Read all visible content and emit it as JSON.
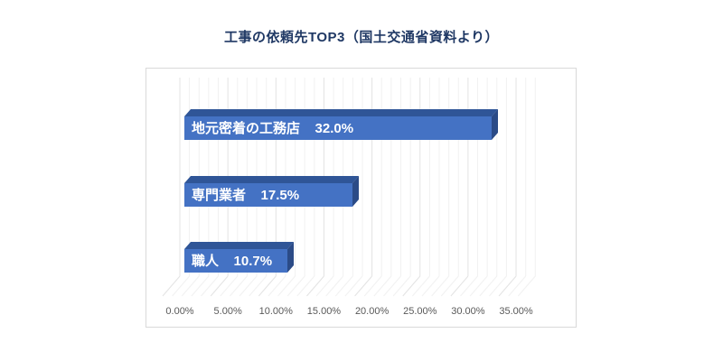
{
  "title": "工事の依頼先TOP3（国土交通省資料より）",
  "chart_data": {
    "type": "bar",
    "orientation": "horizontal",
    "style": "3d",
    "title": "工事の依頼先TOP3（国土交通省資料より）",
    "categories": [
      "地元密着の工務店",
      "専門業者",
      "職人"
    ],
    "values": [
      32.0,
      17.5,
      10.7
    ],
    "value_labels": [
      "32.0%",
      "17.5%",
      "10.7%"
    ],
    "x_ticks": [
      "0.00%",
      "5.00%",
      "10.00%",
      "15.00%",
      "20.00%",
      "25.00%",
      "30.00%",
      "35.00%"
    ],
    "x_tick_values": [
      0,
      5,
      10,
      15,
      20,
      25,
      30,
      35
    ],
    "xlim": [
      0,
      37
    ],
    "grid": {
      "minor_step": 1,
      "major_step": 5,
      "visible": true
    },
    "legend": "none",
    "colors": {
      "bar_front": "#4472C4",
      "bar_top": "#2F5597",
      "bar_side": "#2B4B87",
      "grid_minor": "#F1F1F1",
      "grid_major": "#E3E3E3",
      "title_text": "#1F3864",
      "tick_text": "#595959",
      "plot_border": "#D9D9D9",
      "bar_label_text": "#FFFFFF"
    }
  }
}
